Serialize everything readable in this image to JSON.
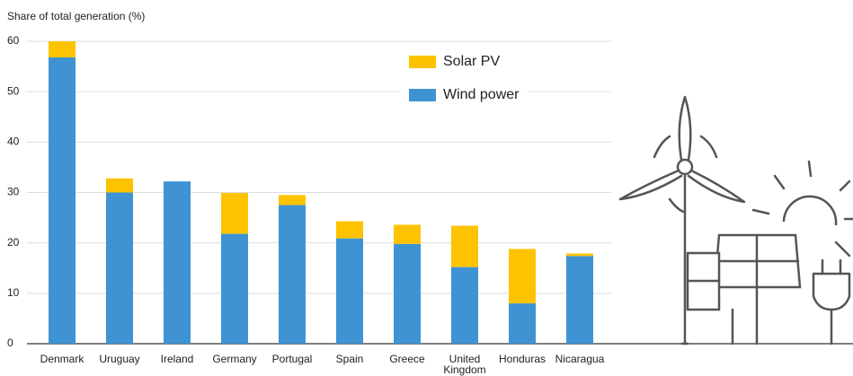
{
  "chart_data": {
    "type": "bar",
    "stacked": true,
    "y_label": "Share of total generation (%)",
    "categories": [
      "Denmark",
      "Uruguay",
      "Ireland",
      "Germany",
      "Portugal",
      "Spain",
      "Greece",
      "United Kingdom",
      "Honduras",
      "Nicaragua"
    ],
    "series": [
      {
        "name": "Wind power",
        "color": "#3f93d3",
        "values": [
          56.8,
          30.0,
          32.2,
          21.8,
          27.5,
          20.9,
          19.8,
          15.2,
          8.0,
          17.4
        ]
      },
      {
        "name": "Solar PV",
        "color": "#fdc300",
        "values": [
          3.2,
          2.8,
          0,
          8.1,
          2.0,
          3.4,
          3.8,
          8.2,
          10.8,
          0.5
        ]
      }
    ],
    "ylim": [
      0,
      60
    ],
    "yticks": [
      0,
      10,
      20,
      30,
      40,
      50,
      60
    ],
    "grid": true,
    "legend": "upper right"
  }
}
